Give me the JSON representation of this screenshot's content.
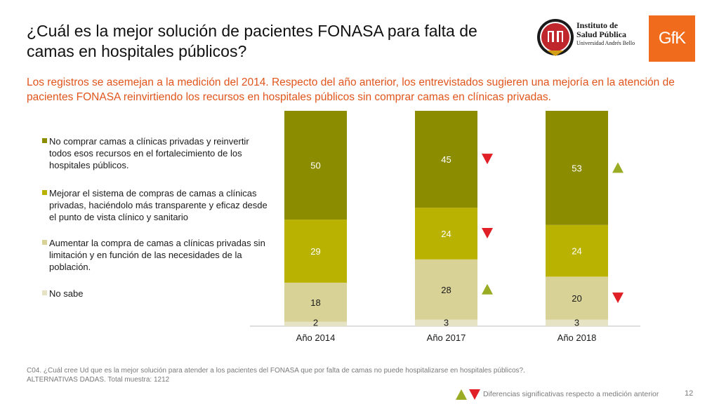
{
  "slide": {
    "title": "¿Cuál es la mejor solución de pacientes FONASA para falta de camas en hospitales públicos?",
    "subtitle": "Los registros se asemejan a la medición del 2014. Respecto del año anterior, los entrevistados sugieren una mejoría en la atención de pacientes FONASA reinvirtiendo los recursos en hospitales públicos sin comprar camas en clínicas privadas.",
    "footnote_line1": "C04. ¿Cuál cree Ud que es la mejor solución para atender a los pacientes del FONASA que por falta de camas no puede hospitalizarse en hospitales públicos?.",
    "footnote_line2": "ALTERNATIVAS DADAS. Total muestra: 1212",
    "significance_legend": "Diferencias significativas respecto a medición anterior",
    "page_number": "12"
  },
  "logos": {
    "isp_line1": "Instituto de",
    "isp_line2": "Salud Pública",
    "isp_line3": "Universidad Andrés Bello",
    "gfk": "GfK"
  },
  "colors": {
    "accent_text": "#e0551c",
    "up_arrow": "#9aab24",
    "down_arrow": "#e01f26"
  },
  "chart_data": {
    "type": "bar",
    "stacked": true,
    "categories": [
      "Año 2014",
      "Año 2017",
      "Año 2018"
    ],
    "ylim": [
      0,
      100
    ],
    "grid": false,
    "legend_position": "left",
    "series": [
      {
        "name": "No comprar camas a clínicas privadas y reinvertir todos esos recursos en el fortalecimiento de los hospitales públicos.",
        "color": "#8b8c00",
        "values": [
          50,
          45,
          53
        ],
        "significance": [
          "",
          "down",
          "up"
        ]
      },
      {
        "name": "Mejorar el sistema de compras de camas a clínicas privadas, haciéndolo más transparente y eficaz desde el punto de vista clínico y sanitario",
        "color": "#bab200",
        "values": [
          29,
          24,
          24
        ],
        "significance": [
          "",
          "down",
          ""
        ]
      },
      {
        "name": "Aumentar la compra de camas a clínicas privadas sin limitación y en función de las necesidades de la población.",
        "color": "#d8d296",
        "values": [
          18,
          28,
          20
        ],
        "significance": [
          "",
          "up",
          "down"
        ]
      },
      {
        "name": "No sabe",
        "color": "#e6e3c4",
        "values": [
          2,
          3,
          3
        ],
        "significance": [
          "",
          "",
          ""
        ]
      }
    ]
  }
}
